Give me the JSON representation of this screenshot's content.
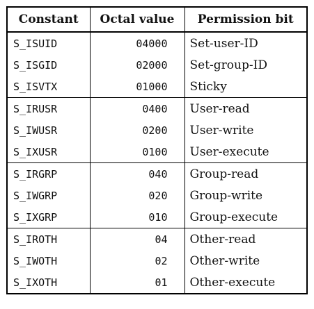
{
  "table": {
    "headers": [
      "Constant",
      "Octal value",
      "Permission bit"
    ],
    "groups": [
      [
        {
          "constant": "S_ISUID",
          "octal": "04000",
          "permission": "Set-user-ID"
        },
        {
          "constant": "S_ISGID",
          "octal": "02000",
          "permission": "Set-group-ID"
        },
        {
          "constant": "S_ISVTX",
          "octal": "01000",
          "permission": "Sticky"
        }
      ],
      [
        {
          "constant": "S_IRUSR",
          "octal": "0400",
          "permission": "User-read"
        },
        {
          "constant": "S_IWUSR",
          "octal": "0200",
          "permission": "User-write"
        },
        {
          "constant": "S_IXUSR",
          "octal": "0100",
          "permission": "User-execute"
        }
      ],
      [
        {
          "constant": "S_IRGRP",
          "octal": "040",
          "permission": "Group-read"
        },
        {
          "constant": "S_IWGRP",
          "octal": "020",
          "permission": "Group-write"
        },
        {
          "constant": "S_IXGRP",
          "octal": "010",
          "permission": "Group-execute"
        }
      ],
      [
        {
          "constant": "S_IROTH",
          "octal": "04",
          "permission": "Other-read"
        },
        {
          "constant": "S_IWOTH",
          "octal": "02",
          "permission": "Other-write"
        },
        {
          "constant": "S_IXOTH",
          "octal": "01",
          "permission": "Other-execute"
        }
      ]
    ]
  }
}
